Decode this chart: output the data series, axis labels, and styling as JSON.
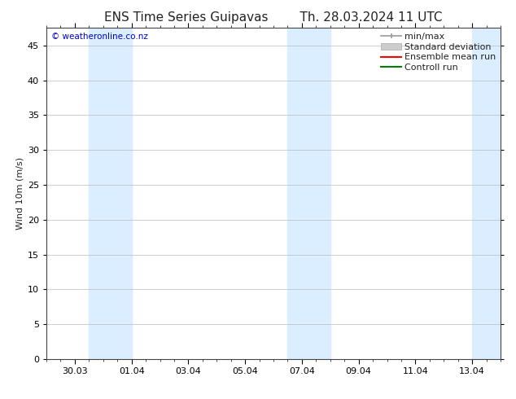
{
  "title_left": "ENS Time Series Guipavas",
  "title_right": "Th. 28.03.2024 11 UTC",
  "ylabel": "Wind 10m (m/s)",
  "watermark": "© weatheronline.co.nz",
  "ylim": [
    0,
    47.5
  ],
  "yticks": [
    0,
    5,
    10,
    15,
    20,
    25,
    30,
    35,
    40,
    45
  ],
  "xtick_labels": [
    "30.03",
    "01.04",
    "03.04",
    "05.04",
    "07.04",
    "09.04",
    "11.04",
    "13.04"
  ],
  "xtick_positions": [
    1,
    3,
    5,
    7,
    9,
    11,
    13,
    15
  ],
  "xmin": 0,
  "xmax": 16,
  "shade_bands": [
    {
      "xmin": 1.5,
      "xmax": 3.0
    },
    {
      "xmin": 8.5,
      "xmax": 10.0
    },
    {
      "xmin": 15.0,
      "xmax": 16.0
    }
  ],
  "shade_color": "#daeeff",
  "bg_color": "#ffffff",
  "grid_color": "#bbbbbb",
  "spine_color": "#444444",
  "legend_items": [
    {
      "label": "min/max",
      "color": "#999999",
      "lw": 1.2
    },
    {
      "label": "Standard deviation",
      "color": "#cccccc",
      "lw": 6
    },
    {
      "label": "Ensemble mean run",
      "color": "#ff0000",
      "lw": 1.5
    },
    {
      "label": "Controll run",
      "color": "#008000",
      "lw": 1.5
    }
  ],
  "watermark_color": "#0000cc",
  "title_fontsize": 11,
  "tick_fontsize": 8,
  "legend_fontsize": 8,
  "ylabel_fontsize": 8,
  "minor_xticks_per_interval": 4
}
